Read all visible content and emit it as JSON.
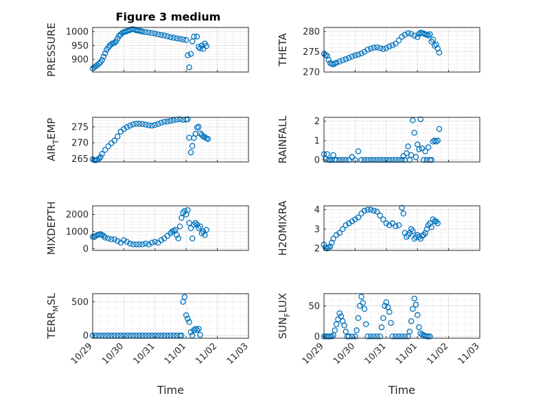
{
  "figure": {
    "title": "Figure 3 medium",
    "marker_color": "#0072BD",
    "date_ticks": [
      "10/29",
      "10/30",
      "10/31",
      "11/01",
      "11/02",
      "11/03"
    ],
    "xlabel": "Time"
  },
  "chart_data": [
    {
      "type": "scatter",
      "ylabel": "PRESSURE",
      "yticks": [
        900,
        950,
        1000
      ],
      "ylim": [
        855,
        1015
      ],
      "xlim": [
        "10/29",
        "11/03"
      ],
      "grid": true,
      "series": [
        {
          "x": [
            0,
            0.05,
            0.1,
            0.15,
            0.2,
            0.25,
            0.3,
            0.35,
            0.4,
            0.45,
            0.5,
            0.55,
            0.6,
            0.65,
            0.7,
            0.75,
            0.8,
            0.85,
            0.9,
            0.95,
            1.0,
            1.05,
            1.1,
            1.15,
            1.2,
            1.25,
            1.3,
            1.35,
            1.4,
            1.45,
            1.5,
            1.55,
            1.6,
            1.7,
            1.8,
            1.9,
            2.0,
            2.1,
            2.2,
            2.3,
            2.4,
            2.5,
            2.6,
            2.7,
            2.8,
            2.9,
            3.0,
            3.05,
            3.1,
            3.15,
            3.2,
            3.25,
            3.35,
            3.4,
            3.45,
            3.5,
            3.55,
            3.6,
            3.65
          ],
          "y": [
            868,
            872,
            876,
            880,
            885,
            890,
            898,
            910,
            922,
            935,
            943,
            950,
            955,
            958,
            960,
            965,
            975,
            985,
            990,
            995,
            998,
            1000,
            1002,
            1004,
            1006,
            1008,
            1009,
            1007,
            1005,
            1004,
            1003,
            1002,
            1000,
            998,
            997,
            995,
            993,
            990,
            988,
            986,
            983,
            980,
            978,
            976,
            974,
            972,
            970,
            915,
            872,
            920,
            965,
            982,
            982,
            945,
            940,
            950,
            938,
            957,
            948
          ]
        }
      ]
    },
    {
      "type": "scatter",
      "ylabel": "THETA",
      "yticks": [
        270,
        275,
        280
      ],
      "ylim": [
        270,
        281
      ],
      "xlim": [
        "10/29",
        "11/03"
      ],
      "grid": true,
      "series": [
        {
          "x": [
            0,
            0.05,
            0.1,
            0.15,
            0.2,
            0.25,
            0.3,
            0.35,
            0.4,
            0.5,
            0.6,
            0.7,
            0.8,
            0.9,
            1.0,
            1.1,
            1.2,
            1.3,
            1.4,
            1.5,
            1.6,
            1.7,
            1.8,
            1.9,
            2.0,
            2.1,
            2.2,
            2.3,
            2.4,
            2.5,
            2.6,
            2.7,
            2.8,
            2.9,
            3.0,
            3.05,
            3.1,
            3.15,
            3.2,
            3.25,
            3.3,
            3.35,
            3.4,
            3.45,
            3.5,
            3.55,
            3.6,
            3.65,
            3.7
          ],
          "y": [
            274.5,
            274.2,
            274.0,
            273.0,
            272.2,
            272.0,
            271.9,
            272.1,
            272.3,
            272.6,
            272.9,
            273.2,
            273.5,
            273.8,
            274.1,
            274.3,
            274.6,
            275.0,
            275.5,
            275.8,
            276.0,
            276.1,
            275.9,
            275.7,
            275.9,
            276.3,
            276.6,
            277.0,
            277.8,
            278.7,
            279.2,
            279.6,
            279.4,
            279.0,
            278.6,
            279.4,
            279.7,
            279.6,
            279.5,
            279.3,
            279.2,
            279.0,
            279.3,
            277.5,
            278.0,
            276.5,
            276.8,
            275.8,
            274.8
          ]
        }
      ]
    },
    {
      "type": "scatter",
      "ylabel": "AIR_TEMP",
      "yticks": [
        265,
        270,
        275
      ],
      "ylim": [
        264,
        278
      ],
      "xlim": [
        "10/29",
        "11/03"
      ],
      "grid": true,
      "series": [
        {
          "x": [
            0,
            0.05,
            0.1,
            0.15,
            0.2,
            0.25,
            0.3,
            0.4,
            0.5,
            0.6,
            0.7,
            0.8,
            0.9,
            1.0,
            1.1,
            1.2,
            1.3,
            1.4,
            1.5,
            1.6,
            1.7,
            1.8,
            1.9,
            2.0,
            2.1,
            2.2,
            2.3,
            2.4,
            2.5,
            2.6,
            2.7,
            2.8,
            2.9,
            3.0,
            3.05,
            3.1,
            3.15,
            3.2,
            3.25,
            3.3,
            3.35,
            3.4,
            3.45,
            3.5,
            3.55,
            3.6,
            3.65,
            3.7
          ],
          "y": [
            264.8,
            264.6,
            264.5,
            264.7,
            265.0,
            265.5,
            266.5,
            267.8,
            268.9,
            269.9,
            270.7,
            272.0,
            273.5,
            274.3,
            274.9,
            275.4,
            275.8,
            276.0,
            276.0,
            275.9,
            275.7,
            275.5,
            275.4,
            275.6,
            275.9,
            276.3,
            276.6,
            276.7,
            276.9,
            277.1,
            277.3,
            277.4,
            277.2,
            277.3,
            277.4,
            271.6,
            267.0,
            269.0,
            271.5,
            272.8,
            274.8,
            275.0,
            273.0,
            272.5,
            272.0,
            271.8,
            271.4,
            271.2
          ]
        }
      ]
    },
    {
      "type": "scatter",
      "ylabel": "RAINFALL",
      "yticks": [
        0,
        1,
        2
      ],
      "ylim": [
        -0.1,
        2.2
      ],
      "xlim": [
        "10/29",
        "11/03"
      ],
      "grid": true,
      "series": [
        {
          "x": [
            0,
            0.05,
            0.1,
            0.15,
            0.2,
            0.25,
            0.3,
            0.35,
            0.4,
            0.5,
            0.6,
            0.7,
            0.8,
            0.9,
            1.0,
            1.1,
            1.2,
            1.3,
            1.4,
            1.5,
            1.6,
            1.7,
            1.8,
            1.9,
            2.0,
            2.1,
            2.2,
            2.3,
            2.4,
            2.5,
            2.55,
            2.6,
            2.65,
            2.7,
            2.75,
            2.8,
            2.85,
            2.9,
            2.95,
            3.0,
            3.05,
            3.1,
            3.15,
            3.2,
            3.25,
            3.3,
            3.35,
            3.4,
            3.45,
            3.5,
            3.55,
            3.6,
            3.65,
            3.7
          ],
          "y": [
            0.3,
            0.05,
            0.3,
            0.0,
            0.0,
            0.0,
            0.25,
            0.0,
            0.0,
            0.0,
            0.0,
            0.0,
            0.0,
            0.15,
            0.0,
            0.45,
            0.0,
            0.0,
            0.0,
            0.0,
            0.0,
            0.0,
            0.0,
            0.0,
            0.0,
            0.0,
            0.0,
            0.0,
            0.0,
            0.0,
            0.2,
            0.0,
            0.35,
            0.7,
            0.0,
            0.25,
            2.05,
            1.4,
            0.15,
            0.8,
            0.55,
            2.1,
            0.6,
            0.0,
            0.45,
            0.0,
            0.65,
            0.0,
            0.0,
            0.95,
            1.0,
            0.95,
            1.0,
            1.6
          ]
        }
      ]
    },
    {
      "type": "scatter",
      "ylabel": "MIXDEPTH",
      "yticks": [
        0,
        1000,
        2000
      ],
      "ylim": [
        -100,
        2500
      ],
      "xlim": [
        "10/29",
        "11/03"
      ],
      "grid": true,
      "series": [
        {
          "x": [
            0,
            0.05,
            0.1,
            0.15,
            0.2,
            0.25,
            0.3,
            0.35,
            0.4,
            0.5,
            0.6,
            0.7,
            0.8,
            0.9,
            1.0,
            1.1,
            1.2,
            1.3,
            1.4,
            1.5,
            1.6,
            1.7,
            1.8,
            1.9,
            2.0,
            2.1,
            2.2,
            2.3,
            2.4,
            2.5,
            2.55,
            2.6,
            2.65,
            2.7,
            2.75,
            2.8,
            2.85,
            2.9,
            2.95,
            3.0,
            3.05,
            3.1,
            3.15,
            3.2,
            3.25,
            3.3,
            3.35,
            3.4,
            3.45,
            3.5,
            3.55,
            3.6,
            3.65
          ],
          "y": [
            700,
            680,
            750,
            800,
            820,
            850,
            800,
            750,
            650,
            600,
            550,
            550,
            450,
            350,
            500,
            400,
            300,
            250,
            250,
            250,
            250,
            300,
            250,
            350,
            400,
            350,
            500,
            600,
            750,
            900,
            1000,
            1050,
            1100,
            800,
            600,
            1300,
            1800,
            2100,
            2200,
            2000,
            2250,
            1500,
            1200,
            600,
            1400,
            1500,
            1400,
            1200,
            1300,
            900,
            1000,
            800,
            1100
          ]
        }
      ]
    },
    {
      "type": "scatter",
      "ylabel": "H2OMIXRA",
      "yticks": [
        2,
        3,
        4
      ],
      "ylim": [
        1.9,
        4.2
      ],
      "xlim": [
        "10/29",
        "11/03"
      ],
      "grid": true,
      "series": [
        {
          "x": [
            0,
            0.05,
            0.1,
            0.15,
            0.2,
            0.25,
            0.3,
            0.4,
            0.5,
            0.6,
            0.7,
            0.8,
            0.9,
            1.0,
            1.1,
            1.2,
            1.3,
            1.4,
            1.5,
            1.6,
            1.7,
            1.8,
            1.9,
            2.0,
            2.1,
            2.2,
            2.3,
            2.4,
            2.5,
            2.55,
            2.6,
            2.65,
            2.7,
            2.75,
            2.8,
            2.85,
            2.9,
            2.95,
            3.0,
            3.05,
            3.1,
            3.15,
            3.2,
            3.25,
            3.3,
            3.35,
            3.4,
            3.45,
            3.5,
            3.55,
            3.6,
            3.65
          ],
          "y": [
            2.2,
            2.05,
            2.0,
            2.05,
            2.1,
            2.3,
            2.5,
            2.7,
            2.8,
            3.0,
            3.2,
            3.3,
            3.4,
            3.5,
            3.6,
            3.8,
            3.95,
            4.0,
            4.0,
            3.95,
            3.9,
            3.7,
            3.5,
            3.3,
            3.2,
            3.3,
            3.15,
            3.2,
            4.1,
            3.8,
            2.8,
            2.6,
            2.7,
            2.8,
            3.0,
            2.9,
            2.5,
            2.6,
            2.7,
            2.6,
            2.5,
            2.65,
            2.7,
            2.8,
            3.0,
            3.2,
            3.3,
            3.1,
            3.5,
            3.4,
            3.4,
            3.3
          ]
        }
      ]
    },
    {
      "type": "scatter",
      "ylabel": "TERR_MSL",
      "yticks": [
        0,
        500
      ],
      "ylim": [
        -40,
        620
      ],
      "xlim": [
        "10/29",
        "11/03"
      ],
      "grid": true,
      "series": [
        {
          "x": [
            0,
            0.1,
            0.2,
            0.3,
            0.4,
            0.5,
            0.6,
            0.7,
            0.8,
            0.9,
            1.0,
            1.1,
            1.2,
            1.3,
            1.4,
            1.5,
            1.6,
            1.7,
            1.8,
            1.9,
            2.0,
            2.1,
            2.2,
            2.3,
            2.4,
            2.5,
            2.6,
            2.7,
            2.8,
            2.85,
            2.9,
            2.95,
            3.0,
            3.05,
            3.1,
            3.15,
            3.2,
            3.25,
            3.3,
            3.35,
            3.4,
            3.45
          ],
          "y": [
            0,
            0,
            0,
            0,
            0,
            0,
            0,
            0,
            0,
            0,
            0,
            0,
            0,
            0,
            0,
            0,
            0,
            0,
            0,
            0,
            0,
            0,
            0,
            0,
            0,
            0,
            0,
            0,
            0,
            0,
            500,
            570,
            300,
            250,
            200,
            50,
            0,
            80,
            100,
            80,
            100,
            10
          ]
        }
      ]
    },
    {
      "type": "scatter",
      "ylabel": "SUN_FLUX",
      "yticks": [
        0,
        50
      ],
      "ylim": [
        -3,
        70
      ],
      "xlim": [
        "10/29",
        "11/03"
      ],
      "grid": true,
      "series": [
        {
          "x": [
            0,
            0.05,
            0.1,
            0.15,
            0.2,
            0.25,
            0.3,
            0.35,
            0.4,
            0.45,
            0.5,
            0.55,
            0.6,
            0.65,
            0.7,
            0.75,
            0.8,
            0.9,
            1.0,
            1.05,
            1.1,
            1.15,
            1.2,
            1.25,
            1.3,
            1.35,
            1.4,
            1.5,
            1.6,
            1.7,
            1.8,
            1.85,
            1.9,
            1.95,
            2.0,
            2.05,
            2.1,
            2.15,
            2.2,
            2.3,
            2.4,
            2.5,
            2.6,
            2.7,
            2.75,
            2.8,
            2.85,
            2.9,
            2.95,
            3.0,
            3.05,
            3.1,
            3.15,
            3.2,
            3.25,
            3.3,
            3.35,
            3.4
          ],
          "y": [
            0,
            0,
            0,
            0,
            0,
            0,
            2,
            10,
            20,
            28,
            38,
            33,
            25,
            18,
            8,
            0,
            0,
            0,
            0,
            10,
            30,
            50,
            65,
            55,
            45,
            20,
            0,
            0,
            0,
            0,
            0,
            15,
            30,
            50,
            56,
            48,
            40,
            22,
            0,
            0,
            0,
            0,
            0,
            0,
            8,
            25,
            45,
            62,
            52,
            35,
            15,
            5,
            3,
            2,
            1,
            0,
            0,
            0
          ]
        }
      ]
    }
  ]
}
